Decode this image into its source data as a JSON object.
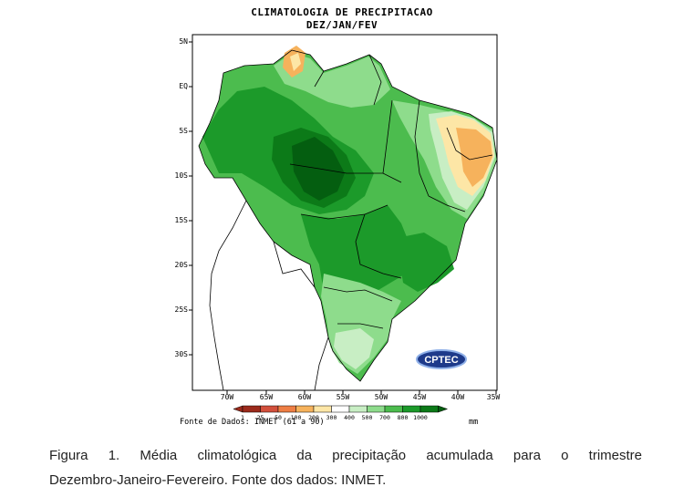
{
  "map": {
    "title_line1": "CLIMATOLOGIA DE PRECIPITACAO",
    "title_line2": "DEZ/JAN/FEV",
    "lat_labels": [
      "5N",
      "EQ",
      "5S",
      "10S",
      "15S",
      "20S",
      "25S",
      "30S"
    ],
    "lon_labels": [
      "70W",
      "65W",
      "60W",
      "55W",
      "50W",
      "45W",
      "40W",
      "35W"
    ],
    "logo_text": "CPTEC",
    "source": "Fonte de Dados: INMET (61 a 90)",
    "unit": "mm"
  },
  "legend": {
    "ticks": [
      "1",
      "25",
      "50",
      "100",
      "200",
      "300",
      "400",
      "500",
      "700",
      "800",
      "1000"
    ],
    "colors": [
      "#9c2a1c",
      "#d2503c",
      "#ee7e44",
      "#f6b25c",
      "#fde6a6",
      "#ffffff",
      "#c8eec4",
      "#8edc8c",
      "#4cbc4e",
      "#1c9a2a",
      "#0c7a18",
      "#045e10"
    ]
  },
  "caption": {
    "line1": "Figura 1. Média climatológica da precipitação acumulada para o trimestre",
    "line2": "Dezembro-Janeiro-Fevereiro. Fonte dos dados: INMET."
  }
}
